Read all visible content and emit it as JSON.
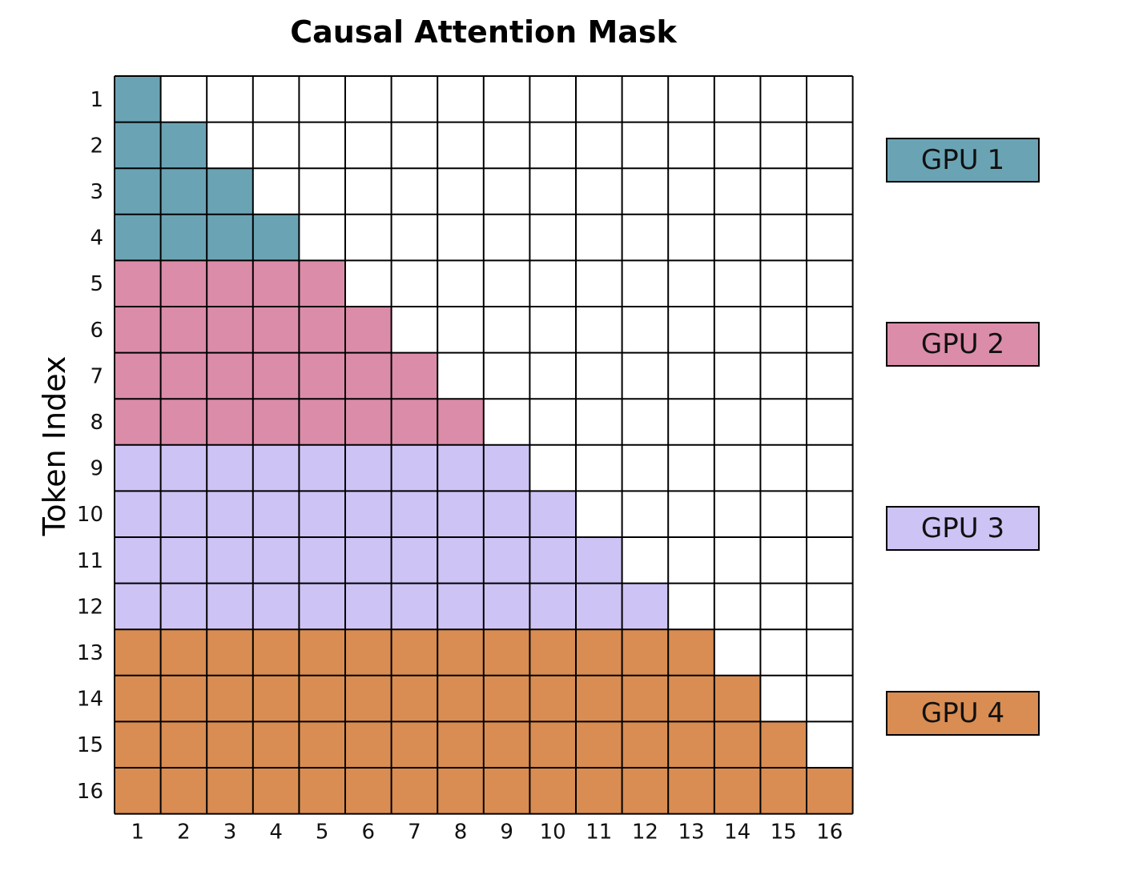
{
  "chart_data": {
    "type": "heatmap",
    "title": "Causal Attention Mask",
    "ylabel": "Token Index",
    "xlabel": "",
    "x_ticks": [
      "1",
      "2",
      "3",
      "4",
      "5",
      "6",
      "7",
      "8",
      "9",
      "10",
      "11",
      "12",
      "13",
      "14",
      "15",
      "16"
    ],
    "y_ticks": [
      "1",
      "2",
      "3",
      "4",
      "5",
      "6",
      "7",
      "8",
      "9",
      "10",
      "11",
      "12",
      "13",
      "14",
      "15",
      "16"
    ],
    "mask": "lower-triangular including diagonal (row i attends to columns 1..i)",
    "groups": [
      {
        "name": "GPU 1",
        "rows": [
          1,
          4
        ],
        "color": "#6aa4b4"
      },
      {
        "name": "GPU 2",
        "rows": [
          5,
          8
        ],
        "color": "#db8ca8"
      },
      {
        "name": "GPU 3",
        "rows": [
          9,
          12
        ],
        "color": "#cdc3f4"
      },
      {
        "name": "GPU 4",
        "rows": [
          13,
          16
        ],
        "color": "#d98d52"
      }
    ],
    "empty_color": "#ffffff",
    "grid": true,
    "legend_position": "right"
  }
}
